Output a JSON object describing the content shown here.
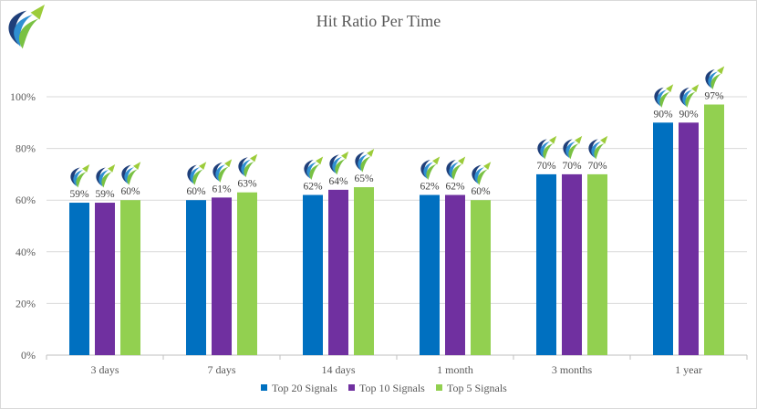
{
  "chart_data": {
    "type": "bar",
    "title": "Hit Ratio Per Time",
    "categories": [
      "3 days",
      "7 days",
      "14 days",
      "1 month",
      "3 months",
      "1 year"
    ],
    "series": [
      {
        "name": "Top 20 Signals",
        "color": "#0070C0",
        "values": [
          59,
          60,
          62,
          62,
          70,
          90
        ]
      },
      {
        "name": "Top 10 Signals",
        "color": "#7030A0",
        "values": [
          59,
          61,
          64,
          62,
          70,
          90
        ]
      },
      {
        "name": "Top 5 Signals",
        "color": "#92D050",
        "values": [
          60,
          63,
          65,
          60,
          70,
          97
        ]
      }
    ],
    "ylim": [
      0,
      100
    ],
    "yticks": [
      0,
      20,
      40,
      60,
      80,
      100
    ],
    "ytick_labels": [
      "0%",
      "20%",
      "40%",
      "60%",
      "80%",
      "100%"
    ],
    "value_labels": [
      [
        "59%",
        "60%",
        "62%",
        "62%",
        "70%",
        "90%"
      ],
      [
        "59%",
        "61%",
        "64%",
        "62%",
        "70%",
        "90%"
      ],
      [
        "60%",
        "63%",
        "65%",
        "60%",
        "70%",
        "97%"
      ]
    ],
    "grid": true,
    "legend": "bottom",
    "xlabel": "",
    "ylabel": ""
  },
  "logo_icon": "swoosh-arrow-logo-icon"
}
